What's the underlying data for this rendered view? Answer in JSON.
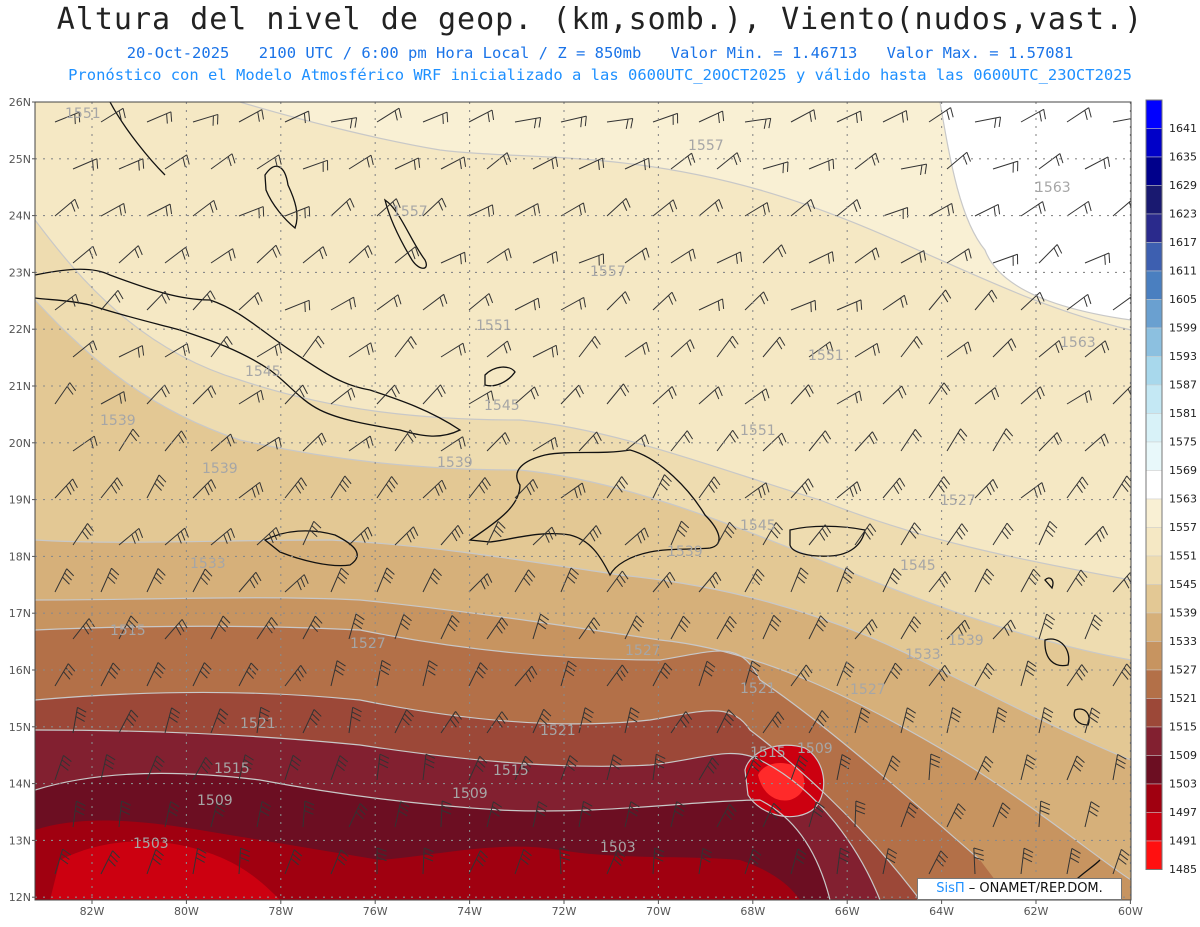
{
  "header": {
    "title": "Altura del nivel de geop. (km,somb.), Viento(nudos,vast.)",
    "date": "20-Oct-2025",
    "time": "2100 UTC / 6:00 pm Hora Local / Z = 850mb",
    "min": "Valor Min. = 1.46713",
    "max": "Valor Max. = 1.57081",
    "forecast": "Pronóstico con el Modelo Atmosférico WRF inicializado a las 0600UTC_20OCT2025 y válido hasta las  0600UTC_23OCT2025"
  },
  "axes": {
    "lat_labels": [
      "26N",
      "25N",
      "24N",
      "23N",
      "22N",
      "21N",
      "20N",
      "19N",
      "18N",
      "17N",
      "16N",
      "15N",
      "14N",
      "13N",
      "12N"
    ],
    "lon_labels": [
      "82W",
      "80W",
      "78W",
      "76W",
      "74W",
      "72W",
      "70W",
      "68W",
      "66W",
      "64W",
      "62W",
      "60W"
    ]
  },
  "colorbar": {
    "levels": [
      "1641",
      "1635",
      "1629",
      "1623",
      "1617",
      "1611",
      "1605",
      "1599",
      "1593",
      "1587",
      "1581",
      "1575",
      "1569",
      "1563",
      "1557",
      "1551",
      "1545",
      "1539",
      "1533",
      "1527",
      "1521",
      "1515",
      "1509",
      "1503",
      "1497",
      "1491",
      "1485"
    ],
    "colors": [
      "#0000ff",
      "#0000c8",
      "#00008b",
      "#191970",
      "#2a2a8c",
      "#3d5fb0",
      "#4a7fc0",
      "#6aa0d0",
      "#8cc0e0",
      "#a8d8ec",
      "#c4e8f4",
      "#d8f2f8",
      "#e8f8fa",
      "#ffffff",
      "#f9f0d4",
      "#f5e8c4",
      "#eedcb0",
      "#e3c894",
      "#d6b07a",
      "#c79460",
      "#b37048",
      "#9c4838",
      "#822030",
      "#6c0e22",
      "#a00010",
      "#cc0010",
      "#ff1010"
    ]
  },
  "contour_labels": [
    "1551",
    "1557",
    "1563",
    "1557",
    "1551",
    "1557",
    "1563",
    "1545",
    "1539",
    "1545",
    "1539",
    "1551",
    "1539",
    "1551",
    "1545",
    "1539",
    "1545",
    "1533",
    "1515",
    "1527",
    "1527",
    "1527",
    "1539",
    "1533",
    "1527",
    "1521",
    "1521",
    "1521",
    "1515",
    "1515",
    "1515",
    "1509",
    "1509",
    "1509",
    "1503",
    "1503"
  ],
  "credit": {
    "brand": "SisΠ",
    "org": "– ONAMET/REP.DOM."
  }
}
